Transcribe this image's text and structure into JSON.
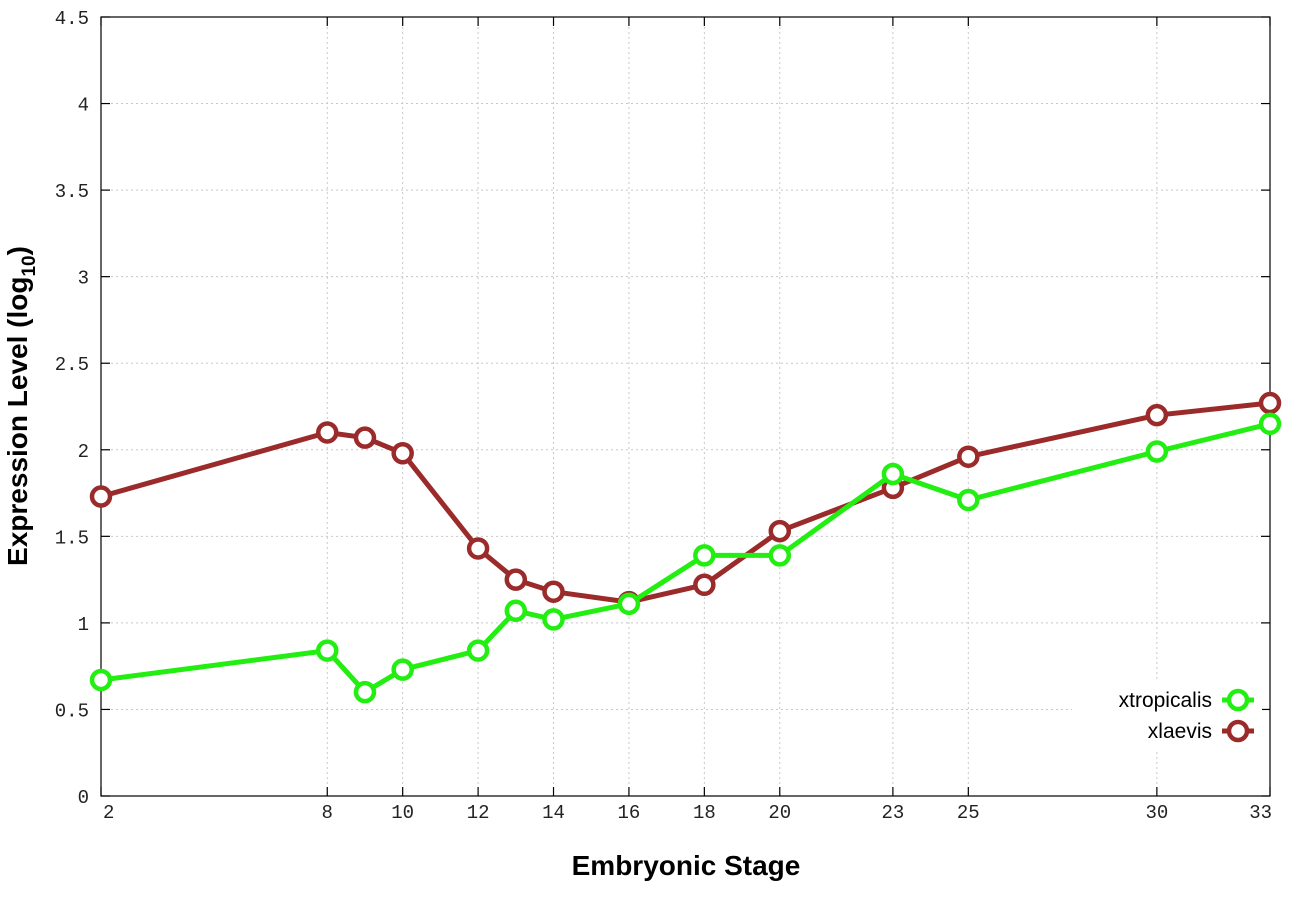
{
  "chart_data": {
    "type": "line",
    "xlabel": "Embryonic Stage",
    "ylabel_main": "Expression Level (log",
    "ylabel_sub": "10",
    "ylabel_close": ")",
    "x_ticks": [
      2,
      8,
      10,
      12,
      14,
      16,
      18,
      20,
      23,
      25,
      30,
      33
    ],
    "y_ticks": [
      "0",
      "0.5",
      "1",
      "1.5",
      "2",
      "2.5",
      "3",
      "3.5",
      "4",
      "4.5"
    ],
    "xlim": [
      2,
      33
    ],
    "ylim": [
      0,
      4.5
    ],
    "grid": true,
    "legend_position": "bottom-right",
    "series": [
      {
        "name": "xtropicalis",
        "color": "#22ee11",
        "x": [
          2,
          8,
          9,
          10,
          12,
          13,
          14,
          16,
          18,
          20,
          23,
          25,
          30,
          33
        ],
        "values": [
          0.67,
          0.84,
          0.6,
          0.73,
          0.84,
          1.07,
          1.02,
          1.11,
          1.39,
          1.39,
          1.86,
          1.71,
          1.99,
          2.15
        ]
      },
      {
        "name": "xlaevis",
        "color": "#9b2a2a",
        "x": [
          2,
          8,
          9,
          10,
          12,
          13,
          14,
          16,
          18,
          20,
          23,
          25,
          30,
          33
        ],
        "values": [
          1.73,
          2.1,
          2.07,
          1.98,
          1.43,
          1.25,
          1.18,
          1.12,
          1.22,
          1.53,
          1.78,
          1.96,
          2.2,
          2.27
        ]
      }
    ]
  }
}
